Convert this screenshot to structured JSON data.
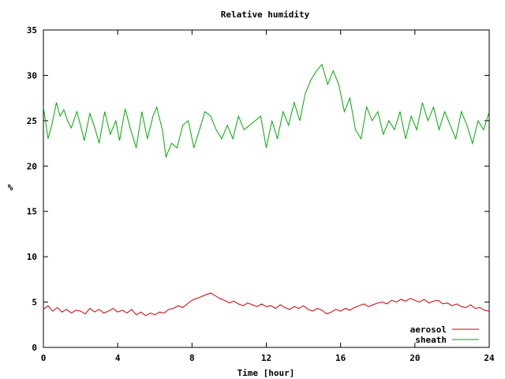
{
  "chart_data": {
    "type": "line",
    "title": "Relative humidity",
    "xlabel": "Time [hour]",
    "ylabel": "%",
    "xlim": [
      0,
      24
    ],
    "ylim": [
      0,
      35
    ],
    "xticks": [
      0,
      4,
      8,
      12,
      16,
      20,
      24
    ],
    "yticks": [
      0,
      5,
      10,
      15,
      20,
      25,
      30,
      35
    ],
    "grid": false,
    "legend_position": "bottom-right",
    "series": [
      {
        "name": "aerosol",
        "color": "#cc0000",
        "x": [
          0,
          0.25,
          0.5,
          0.75,
          1,
          1.25,
          1.5,
          1.75,
          2,
          2.25,
          2.5,
          2.75,
          3,
          3.25,
          3.5,
          3.75,
          4,
          4.25,
          4.5,
          4.75,
          5,
          5.25,
          5.5,
          5.75,
          6,
          6.25,
          6.5,
          6.75,
          7,
          7.25,
          7.5,
          7.75,
          8,
          8.25,
          8.5,
          8.75,
          9,
          9.25,
          9.5,
          9.75,
          10,
          10.25,
          10.5,
          10.75,
          11,
          11.25,
          11.5,
          11.75,
          12,
          12.25,
          12.5,
          12.75,
          13,
          13.25,
          13.5,
          13.75,
          14,
          14.25,
          14.5,
          14.75,
          15,
          15.25,
          15.5,
          15.75,
          16,
          16.25,
          16.5,
          16.75,
          17,
          17.25,
          17.5,
          17.75,
          18,
          18.25,
          18.5,
          18.75,
          19,
          19.25,
          19.5,
          19.75,
          20,
          20.25,
          20.5,
          20.75,
          21,
          21.25,
          21.5,
          21.75,
          22,
          22.25,
          22.5,
          22.75,
          23,
          23.25,
          23.5,
          23.75,
          24
        ],
        "y": [
          4.2,
          4.6,
          4.0,
          4.4,
          3.9,
          4.2,
          3.8,
          4.1,
          4.0,
          3.7,
          4.3,
          3.9,
          4.2,
          3.8,
          4.0,
          4.3,
          3.9,
          4.1,
          3.8,
          4.2,
          3.6,
          3.9,
          3.5,
          3.8,
          3.6,
          3.9,
          3.8,
          4.2,
          4.3,
          4.6,
          4.4,
          4.8,
          5.2,
          5.4,
          5.6,
          5.8,
          6.0,
          5.7,
          5.4,
          5.2,
          4.9,
          5.1,
          4.8,
          4.6,
          4.9,
          4.7,
          4.5,
          4.8,
          4.5,
          4.6,
          4.3,
          4.7,
          4.4,
          4.2,
          4.5,
          4.3,
          4.6,
          4.2,
          4.0,
          4.3,
          4.1,
          3.7,
          3.9,
          4.2,
          4.0,
          4.3,
          4.1,
          4.4,
          4.6,
          4.8,
          4.5,
          4.7,
          4.9,
          5.0,
          4.8,
          5.2,
          5.0,
          5.3,
          5.1,
          5.4,
          5.2,
          5.0,
          5.3,
          4.9,
          5.1,
          5.2,
          4.8,
          4.9,
          4.6,
          4.8,
          4.5,
          4.4,
          4.7,
          4.3,
          4.4,
          4.1,
          4.0
        ]
      },
      {
        "name": "sheath",
        "color": "#00aa00",
        "x": [
          0,
          0.25,
          0.45,
          0.7,
          0.9,
          1.1,
          1.3,
          1.5,
          1.8,
          2.0,
          2.2,
          2.5,
          2.8,
          3.0,
          3.3,
          3.6,
          3.9,
          4.1,
          4.4,
          4.7,
          5.0,
          5.3,
          5.6,
          5.9,
          6.1,
          6.4,
          6.6,
          6.9,
          7.2,
          7.5,
          7.8,
          8.1,
          8.4,
          8.7,
          9.0,
          9.3,
          9.6,
          9.9,
          10.2,
          10.5,
          10.8,
          11.1,
          11.4,
          11.7,
          12.0,
          12.3,
          12.6,
          12.9,
          13.2,
          13.5,
          13.8,
          14.1,
          14.4,
          14.7,
          15.0,
          15.3,
          15.6,
          15.9,
          16.2,
          16.5,
          16.8,
          17.1,
          17.4,
          17.7,
          18.0,
          18.3,
          18.6,
          18.9,
          19.2,
          19.5,
          19.8,
          20.1,
          20.4,
          20.7,
          21.0,
          21.3,
          21.6,
          21.9,
          22.2,
          22.5,
          22.8,
          23.1,
          23.4,
          23.7,
          24
        ],
        "y": [
          26.5,
          23.0,
          24.5,
          27.0,
          25.5,
          26.2,
          25.0,
          24.2,
          26.0,
          24.5,
          22.8,
          25.8,
          24.0,
          22.5,
          26.0,
          23.5,
          25.0,
          22.8,
          26.3,
          24.0,
          22.0,
          26.0,
          23.0,
          25.5,
          26.5,
          24.0,
          21.0,
          22.5,
          22.0,
          24.5,
          25.0,
          22.0,
          24.0,
          26.0,
          25.5,
          24.0,
          23.0,
          24.5,
          23.0,
          25.5,
          24.0,
          24.5,
          25.0,
          25.5,
          22.0,
          25.0,
          23.0,
          26.0,
          24.5,
          27.0,
          25.0,
          28.0,
          29.5,
          30.5,
          31.2,
          29.0,
          30.5,
          29.0,
          26.0,
          27.5,
          24.0,
          23.0,
          26.5,
          25.0,
          26.0,
          23.5,
          25.0,
          24.0,
          26.0,
          23.0,
          25.5,
          24.0,
          27.0,
          25.0,
          26.5,
          24.0,
          26.0,
          24.5,
          23.0,
          26.0,
          24.5,
          22.5,
          25.0,
          24.0,
          26.0
        ]
      }
    ]
  }
}
